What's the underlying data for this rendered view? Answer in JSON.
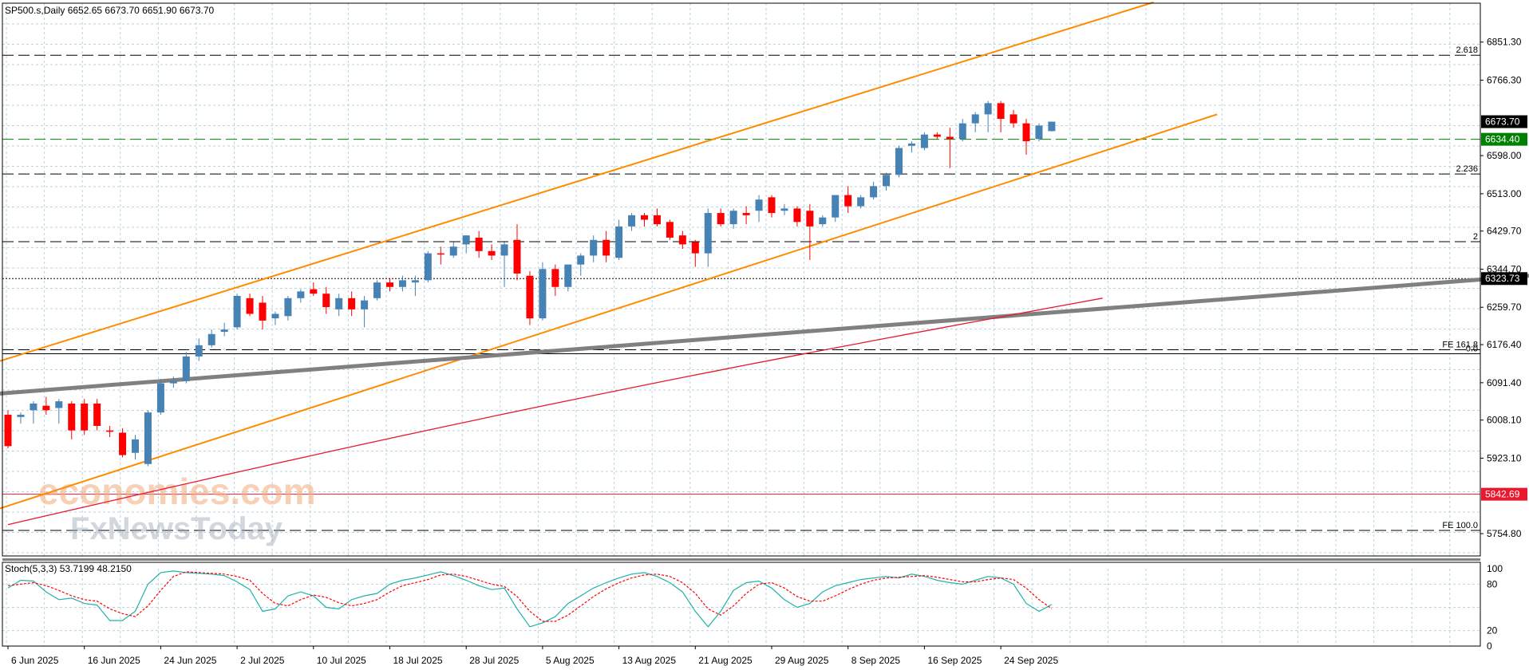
{
  "symbol_info": "SP500.s,Daily  6652.65 6673.70 6651.90 6673.70",
  "watermark": {
    "line1": "economies.com",
    "line2": "FxNewsToday"
  },
  "colors": {
    "bull": "#4682b4",
    "bear": "#ff0000",
    "grid": "#b8d4de",
    "channel": "#ff8c00",
    "trendline": "#808080",
    "ma": "#e8182e",
    "stoch_main": "#20b2aa",
    "stoch_signal": "#ff0000",
    "current_price_bg": "#000000",
    "green_level": "#008000",
    "red_level": "#e8182e"
  },
  "chart_data": [
    {
      "type": "candlestick",
      "title": "SP500.s,Daily",
      "ylim": [
        5705,
        6938
      ],
      "yticks": [
        "6851.30",
        "6766.30",
        "6598.00",
        "6513.00",
        "6429.70",
        "6344.70",
        "6259.70",
        "6176.40",
        "6091.40",
        "6008.10",
        "5923.10",
        "5754.80"
      ],
      "xlabels": [
        {
          "i": 0,
          "label": "6 Jun 2025"
        },
        {
          "i": 6,
          "label": "16 Jun 2025"
        },
        {
          "i": 12,
          "label": "24 Jun 2025"
        },
        {
          "i": 18,
          "label": "2 Jul 2025"
        },
        {
          "i": 24,
          "label": "10 Jul 2025"
        },
        {
          "i": 30,
          "label": "18 Jul 2025"
        },
        {
          "i": 36,
          "label": "28 Jul 2025"
        },
        {
          "i": 42,
          "label": "5 Aug 2025"
        },
        {
          "i": 48,
          "label": "13 Aug 2025"
        },
        {
          "i": 54,
          "label": "21 Aug 2025"
        },
        {
          "i": 60,
          "label": "29 Aug 2025"
        },
        {
          "i": 66,
          "label": "8 Sep 2025"
        },
        {
          "i": 72,
          "label": "16 Sep 2025"
        },
        {
          "i": 78,
          "label": "24 Sep 2025"
        }
      ],
      "candles": [
        [
          6020,
          6030,
          5945,
          5950
        ],
        [
          6015,
          6025,
          6000,
          6020
        ],
        [
          6030,
          6050,
          6000,
          6045
        ],
        [
          6040,
          6060,
          6020,
          6030
        ],
        [
          6035,
          6055,
          6000,
          6050
        ],
        [
          6045,
          6050,
          5965,
          5985
        ],
        [
          6045,
          6055,
          5975,
          5985
        ],
        [
          6045,
          6055,
          5985,
          5995
        ],
        [
          5985,
          5995,
          5970,
          5982
        ],
        [
          5980,
          5990,
          5925,
          5930
        ],
        [
          5935,
          5975,
          5920,
          5965
        ],
        [
          5910,
          6030,
          5905,
          6025
        ],
        [
          6025,
          6100,
          6020,
          6090
        ],
        [
          6090,
          6105,
          6080,
          6095
        ],
        [
          6095,
          6160,
          6090,
          6150
        ],
        [
          6150,
          6190,
          6140,
          6175
        ],
        [
          6175,
          6210,
          6170,
          6200
        ],
        [
          6205,
          6225,
          6195,
          6210
        ],
        [
          6215,
          6290,
          6210,
          6285
        ],
        [
          6280,
          6290,
          6240,
          6245
        ],
        [
          6270,
          6285,
          6210,
          6230
        ],
        [
          6235,
          6250,
          6220,
          6245
        ],
        [
          6240,
          6285,
          6230,
          6280
        ],
        [
          6280,
          6300,
          6270,
          6295
        ],
        [
          6300,
          6315,
          6285,
          6290
        ],
        [
          6290,
          6305,
          6245,
          6260
        ],
        [
          6255,
          6290,
          6240,
          6280
        ],
        [
          6280,
          6295,
          6240,
          6255
        ],
        [
          6255,
          6285,
          6215,
          6275
        ],
        [
          6280,
          6320,
          6275,
          6315
        ],
        [
          6315,
          6325,
          6295,
          6305
        ],
        [
          6305,
          6330,
          6295,
          6320
        ],
        [
          6315,
          6330,
          6285,
          6320
        ],
        [
          6320,
          6385,
          6315,
          6380
        ],
        [
          6380,
          6395,
          6355,
          6378
        ],
        [
          6375,
          6405,
          6370,
          6395
        ],
        [
          6400,
          6420,
          6380,
          6420
        ],
        [
          6415,
          6430,
          6370,
          6385
        ],
        [
          6385,
          6400,
          6365,
          6375
        ],
        [
          6375,
          6405,
          6305,
          6400
        ],
        [
          6410,
          6445,
          6320,
          6335
        ],
        [
          6330,
          6340,
          6220,
          6235
        ],
        [
          6235,
          6360,
          6230,
          6345
        ],
        [
          6345,
          6355,
          6285,
          6305
        ],
        [
          6305,
          6355,
          6295,
          6355
        ],
        [
          6355,
          6380,
          6330,
          6375
        ],
        [
          6375,
          6420,
          6360,
          6410
        ],
        [
          6410,
          6430,
          6360,
          6375
        ],
        [
          6370,
          6455,
          6365,
          6440
        ],
        [
          6440,
          6470,
          6430,
          6465
        ],
        [
          6465,
          6470,
          6440,
          6455
        ],
        [
          6465,
          6480,
          6440,
          6445
        ],
        [
          6450,
          6455,
          6410,
          6415
        ],
        [
          6420,
          6430,
          6390,
          6400
        ],
        [
          6405,
          6410,
          6350,
          6380
        ],
        [
          6380,
          6480,
          6350,
          6470
        ],
        [
          6470,
          6480,
          6440,
          6445
        ],
        [
          6445,
          6480,
          6435,
          6475
        ],
        [
          6470,
          6485,
          6445,
          6465
        ],
        [
          6475,
          6510,
          6450,
          6500
        ],
        [
          6505,
          6510,
          6460,
          6470
        ],
        [
          6475,
          6490,
          6465,
          6480
        ],
        [
          6480,
          6485,
          6440,
          6450
        ],
        [
          6475,
          6490,
          6365,
          6440
        ],
        [
          6445,
          6465,
          6440,
          6460
        ],
        [
          6460,
          6510,
          6450,
          6510
        ],
        [
          6510,
          6530,
          6470,
          6485
        ],
        [
          6485,
          6510,
          6480,
          6505
        ],
        [
          6505,
          6540,
          6500,
          6530
        ],
        [
          6530,
          6560,
          6520,
          6555
        ],
        [
          6555,
          6620,
          6550,
          6615
        ],
        [
          6620,
          6630,
          6605,
          6625
        ],
        [
          6615,
          6650,
          6610,
          6645
        ],
        [
          6645,
          6650,
          6635,
          6640
        ],
        [
          6640,
          6660,
          6570,
          6635
        ],
        [
          6635,
          6680,
          6630,
          6670
        ],
        [
          6670,
          6695,
          6650,
          6690
        ],
        [
          6690,
          6720,
          6650,
          6715
        ],
        [
          6715,
          6720,
          6650,
          6680
        ],
        [
          6690,
          6700,
          6660,
          6670
        ],
        [
          6670,
          6680,
          6600,
          6630
        ],
        [
          6635,
          6670,
          6630,
          6665
        ],
        [
          6652.65,
          6673.7,
          6651.9,
          6673.7
        ]
      ],
      "moving_average": {
        "i0": 0,
        "v0": 5775,
        "i1": 86,
        "v1": 6280
      },
      "channel_upper": {
        "i0": -4,
        "v0": 6110,
        "i1": 90,
        "v1": 6940
      },
      "channel_lower": {
        "i0": -4,
        "v0": 5780,
        "i1": 95,
        "v1": 6690
      },
      "trendline": {
        "i0": -4,
        "v0": 6060,
        "i1": 131,
        "v1": 6355
      },
      "levels": [
        {
          "value": 6822,
          "style": "dashed",
          "label": "2.618",
          "color": "#000000"
        },
        {
          "value": 6634.4,
          "style": "dashed",
          "label": "",
          "color": "#008000",
          "tag": "6634.40"
        },
        {
          "value": 6557,
          "style": "dashed",
          "label": "2.236",
          "color": "#000000"
        },
        {
          "value": 6406,
          "style": "dashed",
          "label": "2",
          "color": "#000000"
        },
        {
          "value": 6323.73,
          "style": "dotted",
          "label": "",
          "color": "#000000",
          "tag": "6323.73"
        },
        {
          "value": 6165,
          "style": "dashed",
          "label": "FE 161.8",
          "color": "#000000"
        },
        {
          "value": 6156,
          "style": "solid",
          "label": "0.0",
          "color": "#000000"
        },
        {
          "value": 5842.69,
          "style": "solid",
          "label": "",
          "color": "#e8182e",
          "tag": "5842.69"
        },
        {
          "value": 5762,
          "style": "dashed",
          "label": "FE 100.0",
          "color": "#000000"
        }
      ],
      "current_price": "6673.70"
    },
    {
      "type": "line",
      "title": "Stoch(5,3,3) 53.7199 48.2150",
      "ylim": [
        0,
        100
      ],
      "yticks": [
        "100",
        "80",
        "20",
        "0"
      ],
      "series": [
        {
          "values": [
            75,
            85,
            84,
            70,
            60,
            62,
            55,
            53,
            33,
            33,
            45,
            80,
            95,
            97,
            95,
            94,
            93,
            91,
            83,
            73,
            45,
            48,
            65,
            70,
            65,
            50,
            48,
            60,
            65,
            68,
            80,
            85,
            88,
            92,
            96,
            91,
            85,
            78,
            73,
            75,
            48,
            25,
            30,
            38,
            55,
            65,
            75,
            82,
            88,
            93,
            95,
            90,
            82,
            70,
            45,
            25,
            45,
            72,
            82,
            84,
            75,
            60,
            50,
            55,
            70,
            78,
            82,
            86,
            88,
            90,
            88,
            93,
            90,
            85,
            82,
            80,
            85,
            90,
            88,
            80,
            55,
            45,
            53.72
          ]
        },
        {
          "values": [
            78,
            80,
            82,
            78,
            72,
            65,
            60,
            58,
            48,
            42,
            38,
            52,
            72,
            90,
            96,
            95,
            94,
            93,
            90,
            85,
            68,
            55,
            52,
            60,
            66,
            63,
            56,
            52,
            55,
            60,
            70,
            78,
            82,
            86,
            92,
            93,
            90,
            85,
            80,
            77,
            64,
            45,
            32,
            32,
            40,
            52,
            64,
            74,
            82,
            88,
            92,
            93,
            90,
            82,
            68,
            48,
            40,
            52,
            68,
            80,
            82,
            75,
            64,
            58,
            58,
            65,
            73,
            80,
            85,
            88,
            89,
            90,
            91,
            89,
            86,
            83,
            83,
            86,
            88,
            86,
            75,
            60,
            48.215
          ]
        }
      ]
    }
  ]
}
